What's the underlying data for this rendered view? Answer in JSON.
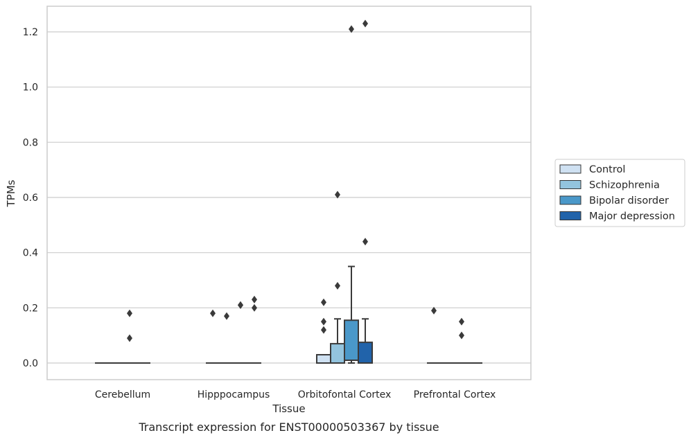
{
  "chart_data": {
    "type": "box",
    "title": "Transcript expression for ENST00000503367 by tissue",
    "xlabel": "Tissue",
    "ylabel": "TPMs",
    "ylim": [
      -0.06,
      1.29
    ],
    "yticks": [
      0.0,
      0.2,
      0.4,
      0.6,
      0.8,
      1.0,
      1.2
    ],
    "ytick_labels": [
      "0.0",
      "0.2",
      "0.4",
      "0.6",
      "0.8",
      "1.0",
      "1.2"
    ],
    "categories": [
      "Cerebellum",
      "Hipppocampus",
      "Orbitofontal Cortex",
      "Prefrontal Cortex"
    ],
    "grid": "horizontal",
    "legend_position": "right",
    "series": [
      {
        "name": "Control",
        "color": "#cfe1f2",
        "boxes": [
          {
            "q1": 0,
            "median": 0,
            "q3": 0,
            "whisker_low": 0,
            "whisker_high": 0,
            "outliers": []
          },
          {
            "q1": 0,
            "median": 0,
            "q3": 0,
            "whisker_low": 0,
            "whisker_high": 0,
            "outliers": [
              0.18
            ]
          },
          {
            "q1": 0,
            "median": 0,
            "q3": 0.03,
            "whisker_low": 0,
            "whisker_high": 0.03,
            "outliers": [
              0.12,
              0.15,
              0.22
            ]
          },
          {
            "q1": 0,
            "median": 0,
            "q3": 0,
            "whisker_low": 0,
            "whisker_high": 0,
            "outliers": [
              0.19
            ]
          }
        ]
      },
      {
        "name": "Schizophrenia",
        "color": "#93c4de",
        "boxes": [
          {
            "q1": 0,
            "median": 0,
            "q3": 0,
            "whisker_low": 0,
            "whisker_high": 0,
            "outliers": []
          },
          {
            "q1": 0,
            "median": 0,
            "q3": 0,
            "whisker_low": 0,
            "whisker_high": 0,
            "outliers": [
              0.17
            ]
          },
          {
            "q1": 0,
            "median": 0,
            "q3": 0.07,
            "whisker_low": 0,
            "whisker_high": 0.16,
            "outliers": [
              0.28,
              0.61
            ]
          },
          {
            "q1": 0,
            "median": 0,
            "q3": 0,
            "whisker_low": 0,
            "whisker_high": 0,
            "outliers": []
          }
        ]
      },
      {
        "name": "Bipolar disorder",
        "color": "#4a98c9",
        "boxes": [
          {
            "q1": 0,
            "median": 0,
            "q3": 0,
            "whisker_low": 0,
            "whisker_high": 0,
            "outliers": [
              0.09,
              0.18
            ]
          },
          {
            "q1": 0,
            "median": 0,
            "q3": 0,
            "whisker_low": 0,
            "whisker_high": 0,
            "outliers": [
              0.21,
              0.21
            ]
          },
          {
            "q1": 0.01,
            "median": 0.01,
            "q3": 0.155,
            "whisker_low": 0,
            "whisker_high": 0.35,
            "outliers": [
              1.21
            ]
          },
          {
            "q1": 0,
            "median": 0,
            "q3": 0,
            "whisker_low": 0,
            "whisker_high": 0,
            "outliers": [
              0.1,
              0.15
            ]
          }
        ]
      },
      {
        "name": "Major depression",
        "color": "#2163aa",
        "boxes": [
          {
            "q1": 0,
            "median": 0,
            "q3": 0,
            "whisker_low": 0,
            "whisker_high": 0,
            "outliers": []
          },
          {
            "q1": 0,
            "median": 0,
            "q3": 0,
            "whisker_low": 0,
            "whisker_high": 0,
            "outliers": [
              0.2,
              0.23
            ]
          },
          {
            "q1": 0,
            "median": 0,
            "q3": 0.075,
            "whisker_low": 0,
            "whisker_high": 0.16,
            "outliers": [
              0.44,
              1.23
            ]
          },
          {
            "q1": 0,
            "median": 0,
            "q3": 0,
            "whisker_low": 0,
            "whisker_high": 0,
            "outliers": []
          }
        ]
      }
    ]
  }
}
